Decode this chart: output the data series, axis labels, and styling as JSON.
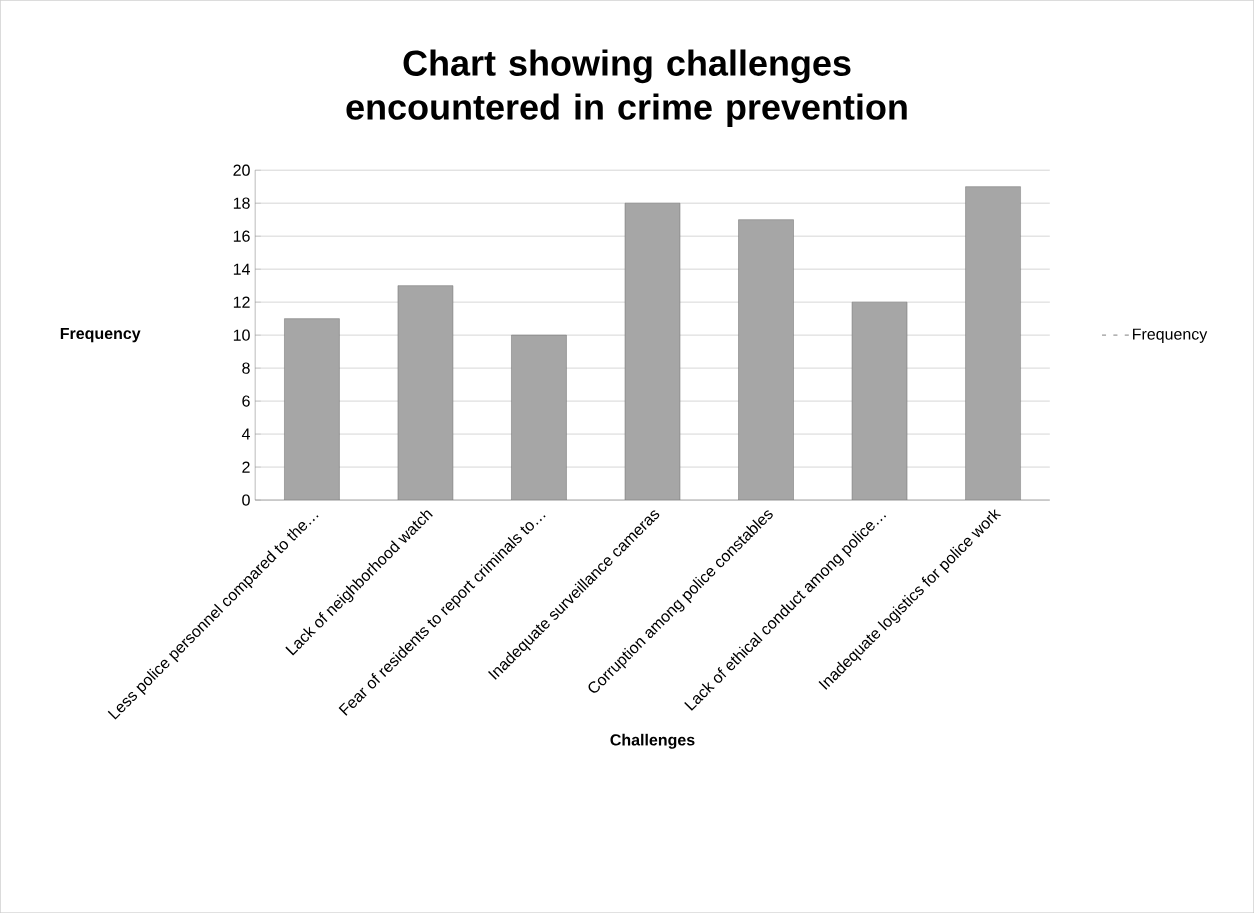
{
  "chart_data": {
    "type": "bar",
    "title": "Chart showing challenges encountered in crime prevention",
    "xlabel": "Challenges",
    "ylabel": "Frequency",
    "categories": [
      "Less police personnel compared to the…",
      "Lack of neighborhood watch",
      "Fear of residents to report criminals to…",
      "Inadequate surveillance cameras",
      "Corruption among police constables",
      "Lack of ethical conduct among police…",
      "Inadequate logistics for police work"
    ],
    "series": [
      {
        "name": "Frequency",
        "color": "#a6a6a6",
        "values": [
          11,
          13,
          10,
          18,
          17,
          12,
          19
        ]
      }
    ],
    "ylim": [
      0,
      20
    ],
    "yticks": [
      0,
      2,
      4,
      6,
      8,
      10,
      12,
      14,
      16,
      18,
      20
    ],
    "grid": "y",
    "legend": "right"
  }
}
